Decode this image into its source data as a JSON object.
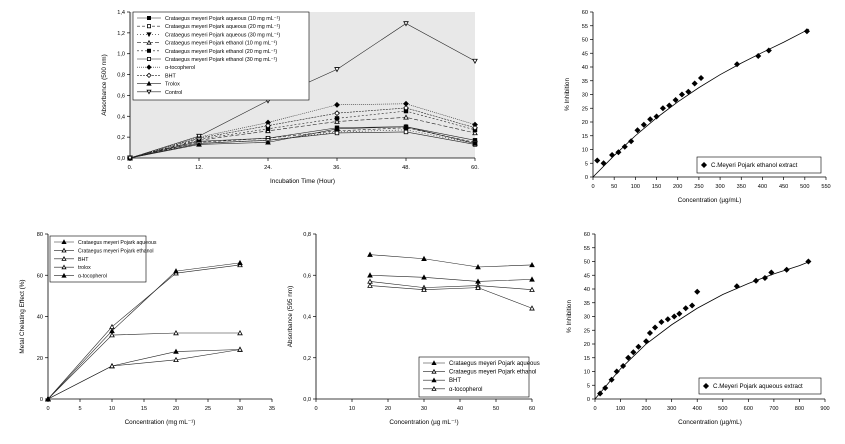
{
  "chart_data": [
    {
      "type": "line",
      "xlabel": "Incubation Time (Hour)",
      "ylabel": "Absorbance (500 nm)",
      "xlim": [
        0,
        60
      ],
      "ylim": [
        0,
        1.4
      ],
      "xticks": [
        0,
        12,
        24,
        36,
        48,
        60
      ],
      "xtick_labels": [
        "0.",
        "12.",
        "24.",
        "36.",
        "48.",
        "60."
      ],
      "yticks": [
        0,
        0.2,
        0.4,
        0.6,
        0.8,
        1.0,
        1.2,
        1.4
      ],
      "ytick_labels": [
        "0,0",
        "0,2",
        "0,4",
        "0,6",
        "0,8",
        "1,0",
        "1,2",
        "1,4"
      ],
      "background": "#e8e8e8",
      "legend_position": "top-left",
      "series": [
        {
          "name": "Crataegus meyeri Pojark aqueous (10 mg mL⁻¹)",
          "x": [
            0,
            12,
            24,
            36,
            48,
            60
          ],
          "values": [
            0,
            0.16,
            0.19,
            0.29,
            0.3,
            0.17
          ],
          "marker": "square-filled",
          "dash": ""
        },
        {
          "name": "Crataegus meyeri Pojark aqueous (20 mg mL⁻¹)",
          "x": [
            0,
            12,
            24,
            36,
            48,
            60
          ],
          "values": [
            0,
            0.15,
            0.19,
            0.26,
            0.29,
            0.15
          ],
          "marker": "square-open",
          "dash": "3,2"
        },
        {
          "name": "Crataegus meyeri Pojark aqueous (30 mg mL⁻¹)",
          "x": [
            0,
            12,
            24,
            36,
            48,
            60
          ],
          "values": [
            0,
            0.14,
            0.17,
            0.25,
            0.27,
            0.14
          ],
          "marker": "tri-down-filled",
          "dash": "1,2"
        },
        {
          "name": "Crataegus meyeri Pojark ethanol (10 mg mL⁻¹)",
          "x": [
            0,
            12,
            24,
            36,
            48,
            60
          ],
          "values": [
            0,
            0.17,
            0.26,
            0.35,
            0.39,
            0.24
          ],
          "marker": "tri-up-open",
          "dash": "4,2"
        },
        {
          "name": "Crataegus meyeri Pojark ethanol (20 mg mL⁻¹)",
          "x": [
            0,
            12,
            24,
            36,
            48,
            60
          ],
          "values": [
            0,
            0.18,
            0.28,
            0.38,
            0.45,
            0.27
          ],
          "marker": "square-filled",
          "dash": "2,2"
        },
        {
          "name": "Crataegus meyeri Pojark ethanol (30 mg mL⁻¹)",
          "x": [
            0,
            12,
            24,
            36,
            48,
            60
          ],
          "values": [
            0,
            0.14,
            0.17,
            0.24,
            0.25,
            0.13
          ],
          "marker": "square-open",
          "dash": ""
        },
        {
          "name": "α-tocopherol",
          "x": [
            0,
            12,
            24,
            36,
            48,
            60
          ],
          "values": [
            0,
            0.2,
            0.34,
            0.51,
            0.52,
            0.32
          ],
          "marker": "diamond-filled",
          "dash": "1,1"
        },
        {
          "name": "BHT",
          "x": [
            0,
            12,
            24,
            36,
            48,
            60
          ],
          "values": [
            0,
            0.19,
            0.31,
            0.43,
            0.48,
            0.29
          ],
          "marker": "diamond-open",
          "dash": "2,1"
        },
        {
          "name": "Trolox",
          "x": [
            0,
            12,
            24,
            36,
            48,
            60
          ],
          "values": [
            0,
            0.13,
            0.15,
            0.28,
            0.3,
            0.14
          ],
          "marker": "tri-up-filled",
          "dash": ""
        },
        {
          "name": "Control",
          "x": [
            0,
            12,
            24,
            36,
            48,
            60
          ],
          "values": [
            0,
            0.21,
            0.55,
            0.85,
            1.29,
            0.93
          ],
          "marker": "tri-down-open",
          "dash": ""
        }
      ]
    },
    {
      "type": "scatter",
      "xlabel": "Concentration (µg/mL)",
      "ylabel": "% Inhibition",
      "xlim": [
        0,
        550
      ],
      "ylim": [
        0,
        60
      ],
      "xticks": [
        0,
        50,
        100,
        150,
        200,
        250,
        300,
        350,
        400,
        450,
        500,
        550
      ],
      "yticks": [
        0,
        5,
        10,
        15,
        20,
        25,
        30,
        35,
        40,
        45,
        50,
        55,
        60
      ],
      "legend_position": "bottom-right",
      "series": [
        {
          "name": "C.Meyeri Pojark ethanol extract",
          "x": [
            10,
            25,
            45,
            60,
            75,
            90,
            105,
            120,
            135,
            150,
            165,
            180,
            195,
            210,
            225,
            240,
            255,
            340,
            390,
            415,
            505
          ],
          "values": [
            6,
            5,
            8,
            9,
            11,
            13,
            17,
            19,
            21,
            22,
            25,
            26,
            28,
            30,
            31,
            34,
            36,
            41,
            44,
            46,
            53
          ]
        },
        {
          "fit": true,
          "x": [
            0,
            50,
            100,
            150,
            200,
            250,
            300,
            350,
            400,
            450,
            510
          ],
          "values": [
            0,
            7.8,
            15,
            21.5,
            27.3,
            32.5,
            37.2,
            41.4,
            45.3,
            49,
            53.8
          ]
        }
      ]
    },
    {
      "type": "line",
      "xlabel": "Concentration (mg mL⁻¹)",
      "ylabel": "Metal Chelating Effect (%)",
      "xlim": [
        0,
        35
      ],
      "ylim": [
        0,
        80
      ],
      "xticks": [
        0,
        5,
        10,
        15,
        20,
        25,
        30,
        35
      ],
      "yticks": [
        0,
        20,
        40,
        60,
        80
      ],
      "legend_position": "top-left",
      "series": [
        {
          "name": "Crataegus meyeri Pojark aqueous",
          "x": [
            0,
            10,
            20,
            30
          ],
          "values": [
            0,
            16,
            23,
            24
          ],
          "marker": "tri-up-filled",
          "dash": ""
        },
        {
          "name": "Crataegus meyeri Pojark ethanol",
          "x": [
            0,
            10,
            20,
            30
          ],
          "values": [
            0,
            16,
            19,
            24
          ],
          "marker": "tri-up-open",
          "dash": ""
        },
        {
          "name": "BHT",
          "x": [
            0,
            10,
            20,
            30
          ],
          "values": [
            0,
            31,
            32,
            32
          ],
          "marker": "tri-up-open",
          "dash": ""
        },
        {
          "name": "trolox",
          "x": [
            0,
            10,
            20,
            30
          ],
          "values": [
            0,
            35,
            61,
            65
          ],
          "marker": "tri-up-open",
          "dash": ""
        },
        {
          "name": "α-tocopherol",
          "x": [
            0,
            10,
            20,
            30
          ],
          "values": [
            0,
            33,
            62,
            66
          ],
          "marker": "tri-up-filled",
          "dash": ""
        }
      ]
    },
    {
      "type": "line",
      "xlabel": "Concentration (µg mL⁻¹)",
      "ylabel": "Absorbance (595 nm)",
      "xlim": [
        0,
        60
      ],
      "ylim": [
        0,
        0.8
      ],
      "xticks": [
        0,
        10,
        20,
        30,
        40,
        50,
        60
      ],
      "yticks": [
        0,
        0.2,
        0.4,
        0.6,
        0.8
      ],
      "ytick_labels": [
        "0,0",
        "0,2",
        "0,4",
        "0,6",
        "0,8"
      ],
      "legend_position": "bottom-right",
      "series": [
        {
          "name": "Crataegus meyeri Pojark aqueous",
          "x": [
            15,
            30,
            45,
            60
          ],
          "values": [
            0.6,
            0.59,
            0.57,
            0.58
          ],
          "marker": "tri-up-filled",
          "dash": ""
        },
        {
          "name": "Crataegus meyeri Pojark ethanol",
          "x": [
            15,
            30,
            45,
            60
          ],
          "values": [
            0.57,
            0.54,
            0.55,
            0.53
          ],
          "marker": "tri-up-open",
          "dash": ""
        },
        {
          "name": "BHT",
          "x": [
            15,
            30,
            45,
            60
          ],
          "values": [
            0.7,
            0.68,
            0.64,
            0.65
          ],
          "marker": "tri-up-filled",
          "dash": ""
        },
        {
          "name": "α-tocopherol",
          "x": [
            15,
            30,
            45,
            60
          ],
          "values": [
            0.55,
            0.53,
            0.54,
            0.44
          ],
          "marker": "tri-up-open",
          "dash": ""
        }
      ]
    },
    {
      "type": "scatter",
      "xlabel": "Concentration (µg/mL)",
      "ylabel": "% Inhibition",
      "xlim": [
        0,
        900
      ],
      "ylim": [
        0,
        60
      ],
      "xticks": [
        0,
        100,
        200,
        300,
        400,
        500,
        600,
        700,
        800,
        900
      ],
      "yticks": [
        0,
        5,
        10,
        15,
        20,
        25,
        30,
        35,
        40,
        45,
        50,
        55,
        60
      ],
      "legend_position": "bottom-right",
      "series": [
        {
          "name": "C.Meyeri Pojark aqueous extract",
          "x": [
            20,
            40,
            65,
            85,
            110,
            130,
            150,
            170,
            200,
            215,
            235,
            260,
            285,
            310,
            330,
            355,
            380,
            400,
            555,
            630,
            665,
            690,
            750,
            835
          ],
          "values": [
            2,
            4,
            7,
            10,
            12,
            15,
            17,
            19,
            21,
            24,
            26,
            28,
            29,
            30,
            31,
            33,
            34,
            39,
            41,
            43,
            44,
            46,
            47,
            50
          ]
        },
        {
          "fit": true,
          "x": [
            0,
            100,
            200,
            300,
            400,
            500,
            600,
            700,
            800,
            840
          ],
          "values": [
            0,
            11,
            20,
            27,
            33,
            38,
            42,
            45.5,
            48.5,
            50
          ]
        }
      ]
    }
  ]
}
